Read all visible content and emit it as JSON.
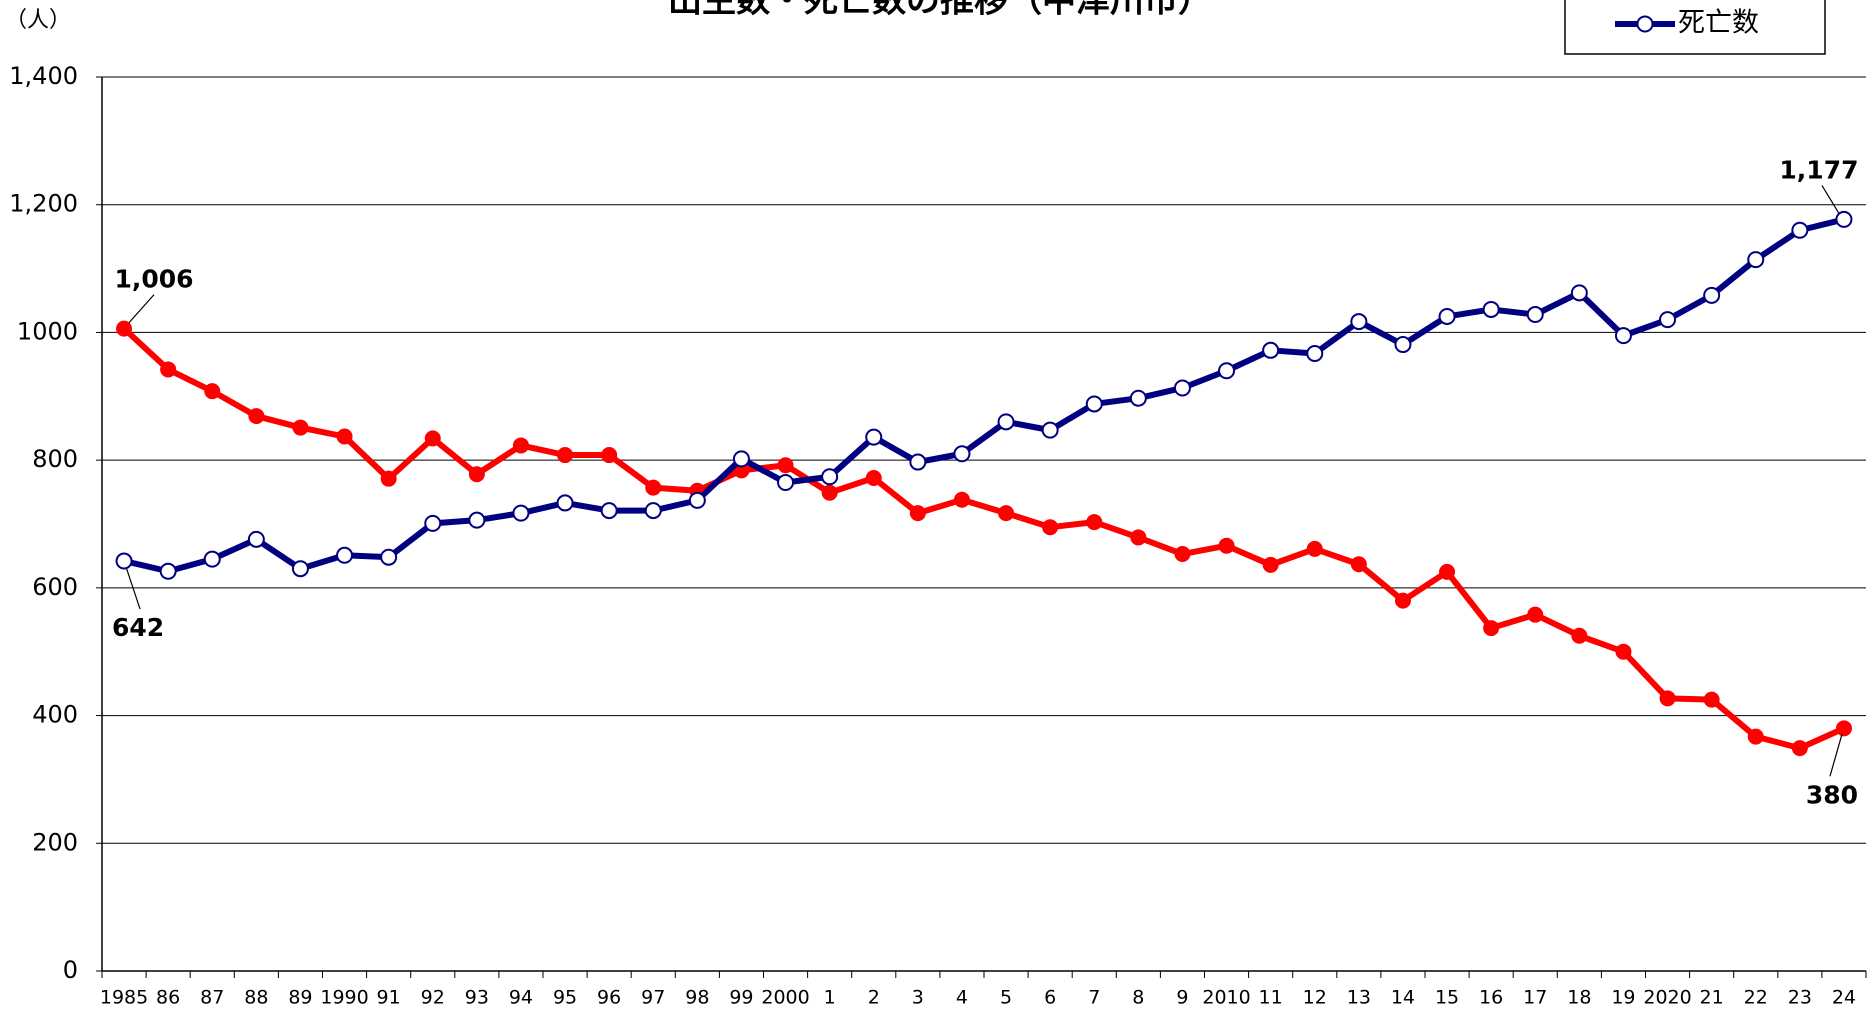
{
  "chart_data": {
    "type": "line",
    "title": "出生数・死亡数の推移（中津川市）",
    "y_label": "（人）",
    "categories": [
      "1985",
      "86",
      "87",
      "88",
      "89",
      "1990",
      "91",
      "92",
      "93",
      "94",
      "95",
      "96",
      "97",
      "98",
      "99",
      "2000",
      "1",
      "2",
      "3",
      "4",
      "5",
      "6",
      "7",
      "8",
      "9",
      "2010",
      "11",
      "12",
      "13",
      "14",
      "15",
      "16",
      "17",
      "18",
      "19",
      "2020",
      "21",
      "22",
      "23",
      "24"
    ],
    "series": [
      {
        "color": "#ff0000",
        "marker": "filled",
        "values": [
          1006,
          942,
          908,
          869,
          851,
          837,
          771,
          834,
          778,
          823,
          808,
          808,
          757,
          752,
          784,
          792,
          749,
          772,
          717,
          738,
          717,
          695,
          703,
          679,
          653,
          666,
          636,
          661,
          637,
          580,
          625,
          537,
          558,
          525,
          500,
          427,
          425,
          367,
          349,
          380
        ],
        "value_labels": [
          "1,006",
          null,
          null,
          null,
          null,
          null,
          null,
          null,
          null,
          null,
          null,
          null,
          null,
          null,
          null,
          null,
          null,
          null,
          null,
          null,
          null,
          null,
          null,
          null,
          null,
          null,
          null,
          null,
          null,
          null,
          null,
          null,
          null,
          null,
          null,
          null,
          null,
          null,
          null,
          "380"
        ]
      },
      {
        "name": "死亡数",
        "color": "#000080",
        "marker": "open",
        "values": [
          642,
          626,
          645,
          676,
          630,
          651,
          648,
          701,
          706,
          717,
          733,
          721,
          721,
          737,
          802,
          765,
          774,
          836,
          797,
          810,
          860,
          847,
          888,
          897,
          913,
          940,
          972,
          967,
          1017,
          981,
          1025,
          1036,
          1028,
          1062,
          995,
          1020,
          1058,
          1114,
          1160,
          1177
        ],
        "value_labels": [
          "642",
          null,
          null,
          null,
          null,
          null,
          null,
          null,
          null,
          null,
          null,
          null,
          null,
          null,
          null,
          null,
          null,
          null,
          null,
          null,
          null,
          null,
          null,
          null,
          null,
          null,
          null,
          null,
          null,
          null,
          null,
          null,
          null,
          null,
          null,
          null,
          null,
          null,
          null,
          "1,177"
        ]
      }
    ],
    "ylim": [
      0,
      1400
    ],
    "yticks": [
      0,
      200,
      400,
      600,
      800,
      1000,
      {
        "value": 1200,
        "label": "1,200"
      },
      {
        "value": 1400,
        "label": "1,400"
      }
    ],
    "grid": true
  }
}
